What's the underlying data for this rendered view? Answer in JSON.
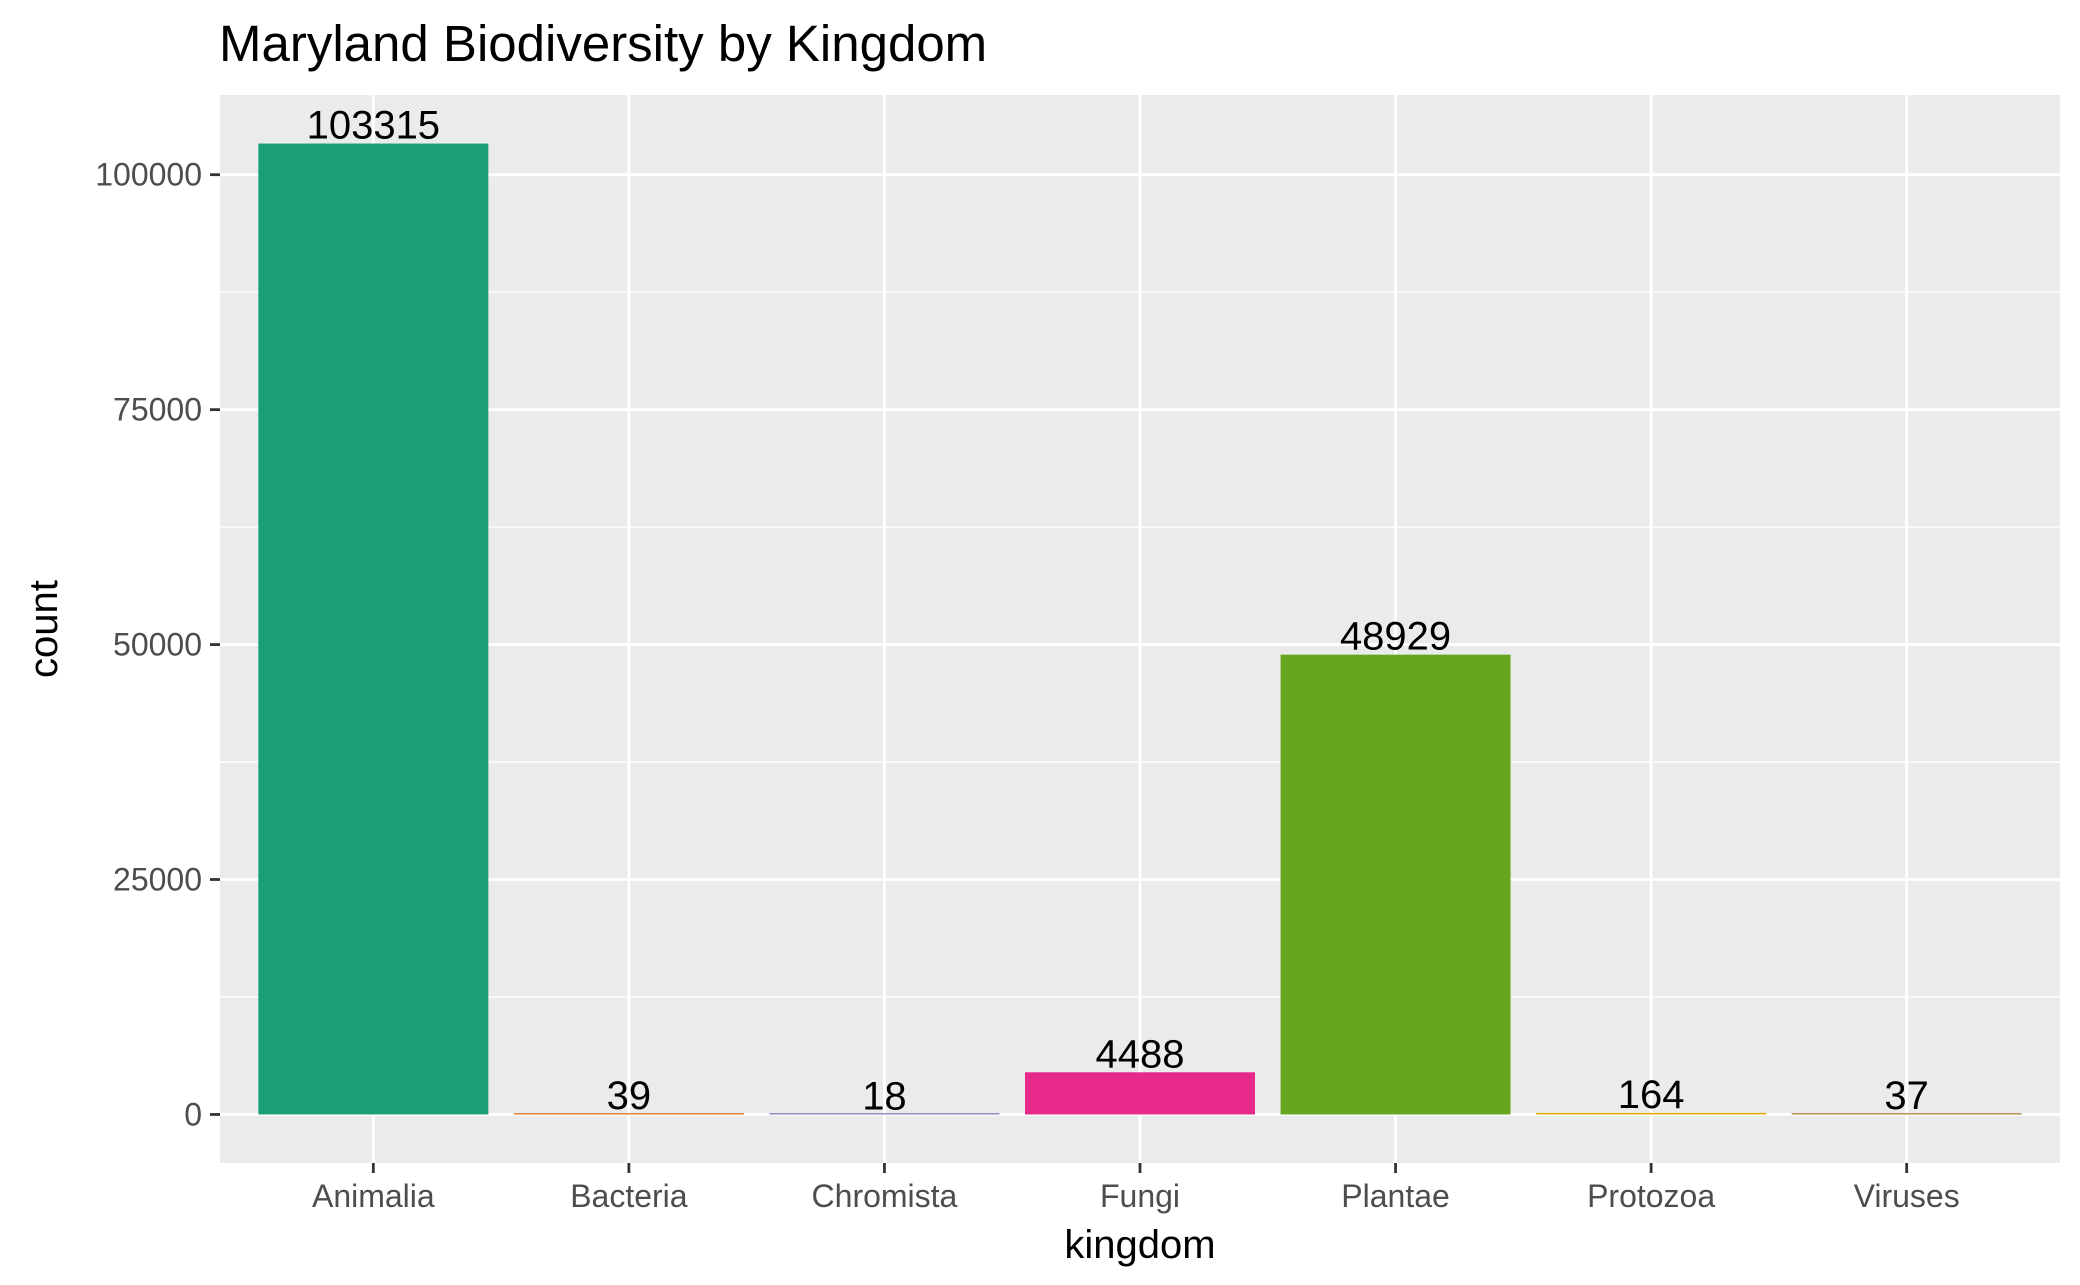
{
  "chart_data": {
    "type": "bar",
    "title": "Maryland Biodiversity by Kingdom",
    "xlabel": "kingdom",
    "ylabel": "count",
    "categories": [
      "Animalia",
      "Bacteria",
      "Chromista",
      "Fungi",
      "Plantae",
      "Protozoa",
      "Viruses"
    ],
    "values": [
      103315,
      39,
      18,
      4488,
      48929,
      164,
      37
    ],
    "data_labels": [
      "103315",
      "39",
      "18",
      "4488",
      "48929",
      "164",
      "37"
    ],
    "colors": [
      "#1b9e77",
      "#d95f02",
      "#7570b3",
      "#e7298a",
      "#66a61e",
      "#e6ab02",
      "#a6761d"
    ],
    "ylim": [
      -5165.75,
      108480.75
    ],
    "yticks": [
      0,
      25000,
      50000,
      75000,
      100000
    ],
    "ytick_labels": [
      "0",
      "25000",
      "50000",
      "75000",
      "100000"
    ],
    "grid": true,
    "legend": "none",
    "panel_background": "#ebebeb",
    "gridline_color": "#ffffff"
  }
}
